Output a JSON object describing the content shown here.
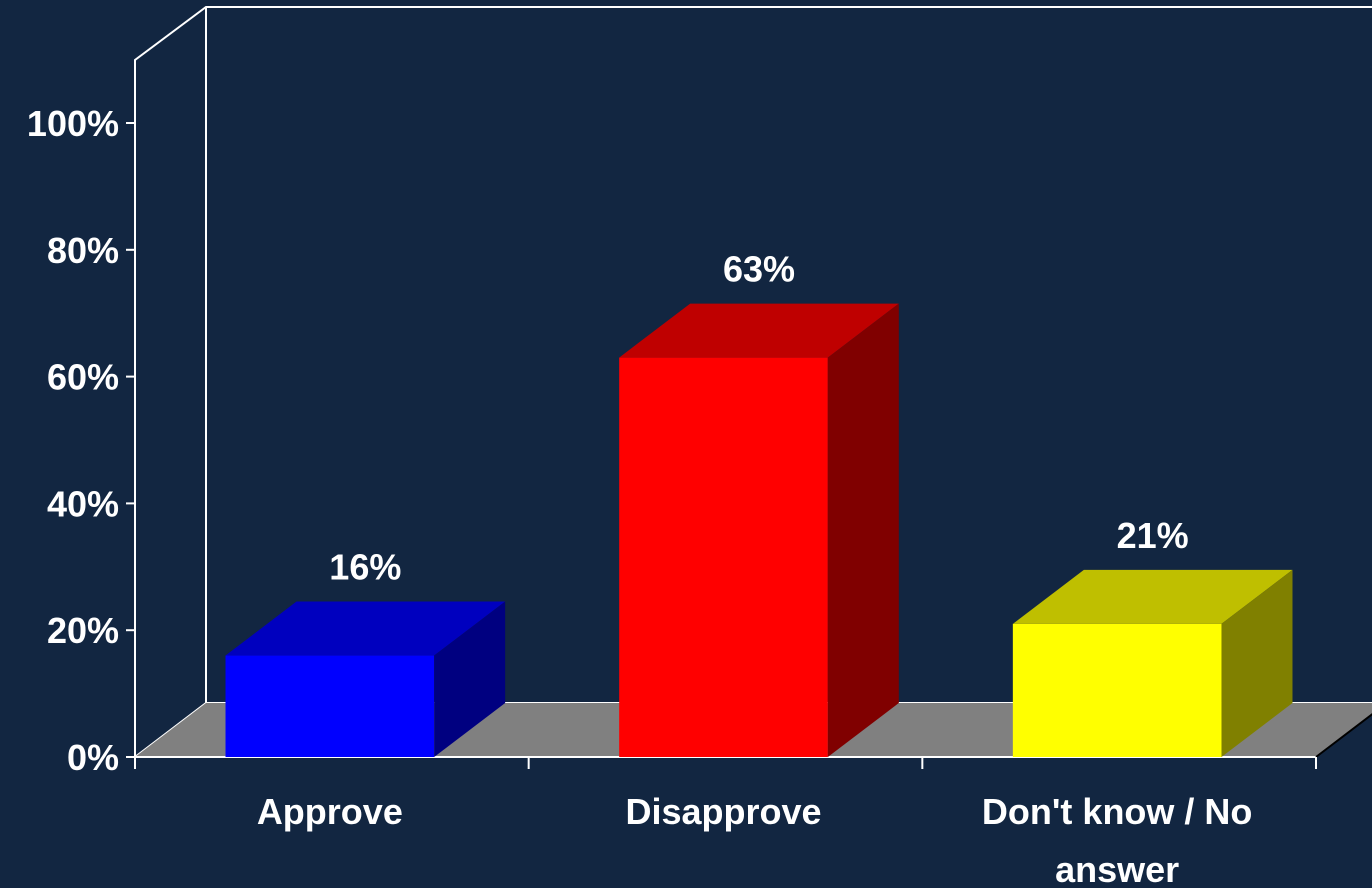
{
  "chart_data": {
    "type": "bar",
    "categories": [
      "Approve",
      "Disapprove",
      "Don't know / No answer"
    ],
    "category_lines": [
      [
        "Approve"
      ],
      [
        "Disapprove"
      ],
      [
        "Don't know / No",
        "answer"
      ]
    ],
    "values": [
      16,
      63,
      21
    ],
    "data_labels": [
      "16%",
      "63%",
      "21%"
    ],
    "colors": [
      "#0000ff",
      "#ff0000",
      "#ffff00"
    ],
    "ylim": [
      0,
      100
    ],
    "yticks": [
      0,
      20,
      40,
      60,
      80,
      100
    ],
    "ytick_labels": [
      "0%",
      "20%",
      "40%",
      "60%",
      "80%",
      "100%"
    ],
    "title": "",
    "xlabel": "",
    "ylabel": "",
    "grid": false,
    "legend": "none",
    "style": "3d",
    "background_color": "#122641",
    "floor_color": "#808080"
  }
}
